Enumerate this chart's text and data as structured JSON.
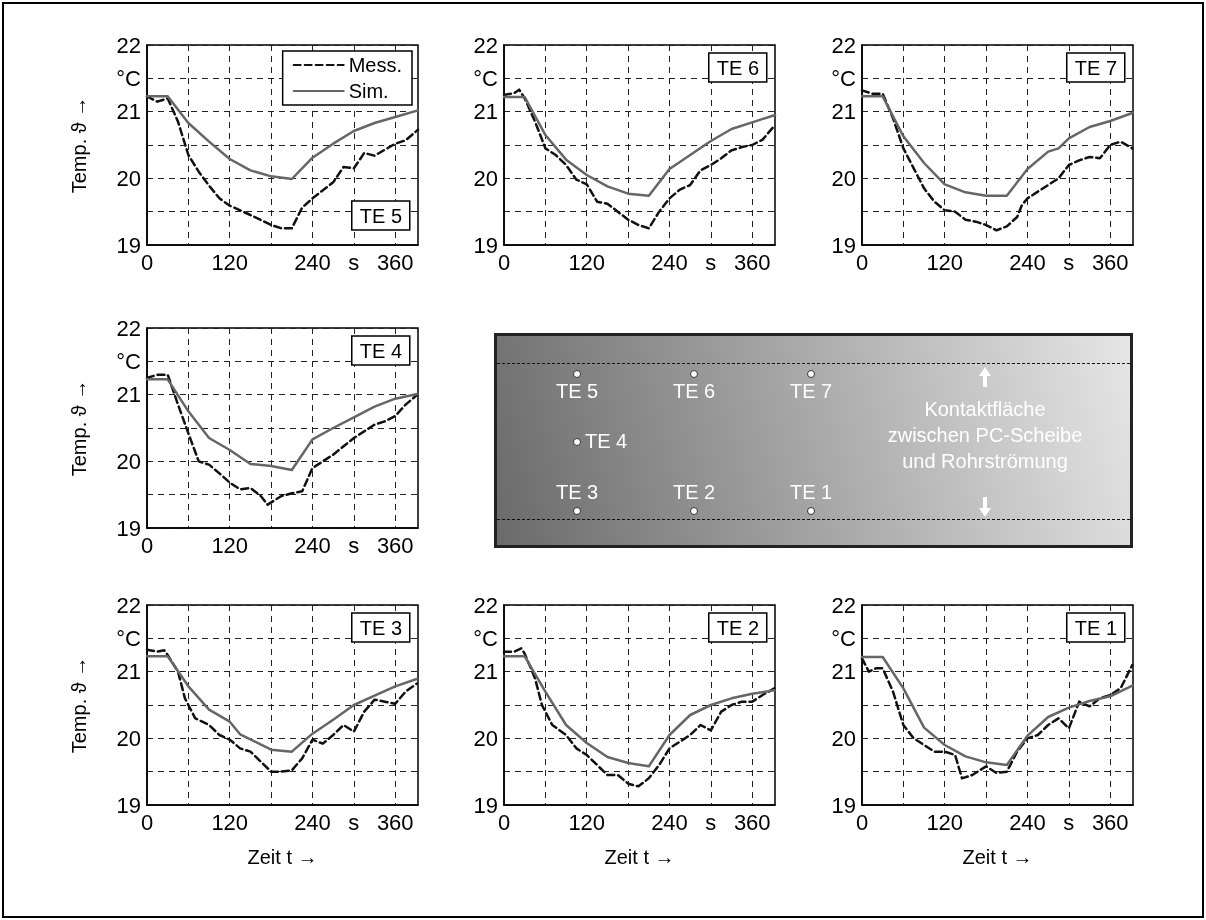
{
  "chart_data": [
    {
      "type": "line",
      "title": "TE 5",
      "ylabel": "Temp. ϑ →",
      "legend": "top right",
      "grid": true,
      "marker": "none",
      "xlim": [
        0,
        393
      ],
      "ylim": [
        19,
        22
      ],
      "xticks": [
        0,
        {
          "value": 60,
          "label": null
        },
        120,
        {
          "value": 180,
          "label": null
        },
        240,
        {
          "value": 300,
          "label": "s"
        },
        360
      ],
      "yticks": [
        19,
        {
          "value": 19.5,
          "label": null
        },
        20,
        {
          "value": 20.5,
          "label": null
        },
        21,
        {
          "value": 21.5,
          "label": "°C"
        },
        22
      ],
      "series": [
        {
          "name": "Mess.",
          "color": "#111111",
          "line_style": "dashed",
          "x": [
            0,
            15,
            30,
            45,
            60,
            75,
            90,
            105,
            120,
            150,
            180,
            195,
            210,
            225,
            240,
            270,
            285,
            300,
            315,
            330,
            360,
            375,
            393
          ],
          "values": [
            21.23,
            21.15,
            21.2,
            20.85,
            20.35,
            20.1,
            19.89,
            19.7,
            19.59,
            19.45,
            19.3,
            19.25,
            19.25,
            19.56,
            19.7,
            19.94,
            20.17,
            20.15,
            20.38,
            20.34,
            20.52,
            20.57,
            20.73
          ]
        },
        {
          "name": "Sim.",
          "color": "#666666",
          "line_style": "solid",
          "x": [
            0,
            30,
            60,
            90,
            120,
            150,
            180,
            210,
            240,
            270,
            300,
            330,
            360,
            393
          ],
          "values": [
            21.23,
            21.23,
            20.83,
            20.55,
            20.29,
            20.12,
            20.03,
            19.99,
            20.31,
            20.52,
            20.71,
            20.83,
            20.92,
            21.02
          ]
        }
      ]
    },
    {
      "type": "line",
      "title": "TE 6",
      "grid": true,
      "marker": "none",
      "xlim": [
        0,
        393
      ],
      "ylim": [
        19,
        22
      ],
      "xticks": [
        0,
        {
          "value": 60,
          "label": null
        },
        120,
        {
          "value": 180,
          "label": null
        },
        240,
        {
          "value": 300,
          "label": "s"
        },
        360
      ],
      "yticks": [
        19,
        {
          "value": 19.5,
          "label": null
        },
        20,
        {
          "value": 20.5,
          "label": null
        },
        21,
        {
          "value": 21.5,
          "label": "°C"
        },
        22
      ],
      "series": [
        {
          "color": "#111111",
          "line_style": "dashed",
          "x": [
            0,
            15,
            22,
            30,
            45,
            60,
            75,
            90,
            105,
            120,
            135,
            150,
            165,
            180,
            195,
            210,
            225,
            240,
            255,
            270,
            285,
            300,
            315,
            330,
            345,
            360,
            375,
            393
          ],
          "values": [
            21.25,
            21.28,
            21.33,
            21.2,
            20.85,
            20.45,
            20.35,
            20.2,
            19.98,
            19.91,
            19.65,
            19.62,
            19.5,
            19.38,
            19.3,
            19.25,
            19.5,
            19.7,
            19.83,
            19.9,
            20.12,
            20.2,
            20.3,
            20.42,
            20.47,
            20.5,
            20.58,
            20.8
          ]
        },
        {
          "color": "#666666",
          "line_style": "solid",
          "x": [
            0,
            30,
            60,
            90,
            120,
            150,
            180,
            210,
            240,
            270,
            300,
            330,
            360,
            393
          ],
          "values": [
            21.22,
            21.22,
            20.65,
            20.28,
            20.05,
            19.88,
            19.77,
            19.74,
            20.14,
            20.35,
            20.56,
            20.74,
            20.84,
            20.95
          ]
        }
      ]
    },
    {
      "type": "line",
      "title": "TE 7",
      "grid": true,
      "marker": "none",
      "xlim": [
        0,
        393
      ],
      "ylim": [
        19,
        22
      ],
      "xticks": [
        0,
        {
          "value": 60,
          "label": null
        },
        120,
        {
          "value": 180,
          "label": null
        },
        240,
        {
          "value": 300,
          "label": "s"
        },
        360
      ],
      "yticks": [
        19,
        {
          "value": 19.5,
          "label": null
        },
        20,
        {
          "value": 20.5,
          "label": null
        },
        21,
        {
          "value": 21.5,
          "label": "°C"
        },
        22
      ],
      "series": [
        {
          "color": "#111111",
          "line_style": "dashed",
          "x": [
            0,
            15,
            30,
            45,
            60,
            75,
            90,
            105,
            120,
            135,
            150,
            165,
            180,
            195,
            210,
            225,
            232,
            240,
            270,
            285,
            300,
            315,
            330,
            345,
            360,
            375,
            392
          ],
          "values": [
            21.32,
            21.27,
            21.27,
            20.9,
            20.45,
            20.15,
            19.85,
            19.65,
            19.52,
            19.5,
            19.38,
            19.35,
            19.3,
            19.22,
            19.28,
            19.42,
            19.6,
            19.7,
            19.9,
            20.0,
            20.2,
            20.27,
            20.32,
            20.3,
            20.5,
            20.55,
            20.45
          ]
        },
        {
          "color": "#666666",
          "line_style": "solid",
          "x": [
            0,
            30,
            60,
            90,
            120,
            150,
            180,
            210,
            240,
            270,
            285,
            300,
            330,
            360,
            392
          ],
          "values": [
            21.23,
            21.23,
            20.63,
            20.23,
            19.91,
            19.79,
            19.74,
            19.74,
            20.14,
            20.4,
            20.45,
            20.6,
            20.77,
            20.86,
            20.98
          ]
        }
      ]
    },
    {
      "type": "line",
      "title": "TE 4",
      "ylabel": "Temp. ϑ →",
      "grid": true,
      "marker": "none",
      "xlim": [
        0,
        393
      ],
      "ylim": [
        19,
        22
      ],
      "xticks": [
        0,
        {
          "value": 60,
          "label": null
        },
        120,
        {
          "value": 180,
          "label": null
        },
        240,
        {
          "value": 300,
          "label": "s"
        },
        360
      ],
      "yticks": [
        19,
        {
          "value": 19.5,
          "label": null
        },
        20,
        {
          "value": 20.5,
          "label": null
        },
        21,
        {
          "value": 21.5,
          "label": "°C"
        },
        22
      ],
      "series": [
        {
          "color": "#111111",
          "line_style": "dashed",
          "x": [
            0,
            15,
            30,
            45,
            60,
            75,
            90,
            105,
            120,
            135,
            150,
            165,
            175,
            195,
            210,
            225,
            240,
            255,
            270,
            300,
            315,
            330,
            345,
            360,
            375,
            392
          ],
          "values": [
            21.25,
            21.3,
            21.3,
            20.85,
            20.42,
            20.0,
            19.95,
            19.82,
            19.68,
            19.58,
            19.6,
            19.48,
            19.35,
            19.48,
            19.52,
            19.55,
            19.9,
            20.0,
            20.1,
            20.35,
            20.45,
            20.55,
            20.6,
            20.68,
            20.85,
            21.0
          ]
        },
        {
          "color": "#666666",
          "line_style": "solid",
          "x": [
            0,
            30,
            60,
            90,
            120,
            150,
            180,
            210,
            240,
            270,
            300,
            330,
            360,
            392
          ],
          "values": [
            21.23,
            21.23,
            20.75,
            20.35,
            20.17,
            19.96,
            19.93,
            19.87,
            20.33,
            20.5,
            20.66,
            20.82,
            20.94,
            21.01
          ]
        }
      ]
    },
    {
      "type": "other",
      "annotations": [
        "TE 5",
        "TE 6",
        "TE 7",
        "TE 4",
        "TE 3",
        "TE 2",
        "TE 1",
        "Kontaktfläche zwischen PC-Scheibe und Rohrströmung"
      ]
    },
    {
      "type": "line",
      "title": "TE 3",
      "xlabel": "Zeit t →",
      "ylabel": "Temp. ϑ →",
      "grid": true,
      "marker": "none",
      "xlim": [
        0,
        393
      ],
      "ylim": [
        19,
        22
      ],
      "xticks": [
        0,
        {
          "value": 60,
          "label": null
        },
        120,
        {
          "value": 180,
          "label": null
        },
        240,
        {
          "value": 300,
          "label": "s"
        },
        360
      ],
      "yticks": [
        19,
        {
          "value": 19.5,
          "label": null
        },
        20,
        {
          "value": 20.5,
          "label": null
        },
        21,
        {
          "value": 21.5,
          "label": "°C"
        },
        22
      ],
      "series": [
        {
          "color": "#111111",
          "line_style": "dashed",
          "x": [
            0,
            15,
            25,
            30,
            45,
            55,
            70,
            90,
            105,
            120,
            135,
            150,
            165,
            180,
            195,
            210,
            225,
            240,
            255,
            270,
            285,
            300,
            315,
            330,
            345,
            360,
            375,
            391
          ],
          "values": [
            21.33,
            21.3,
            21.32,
            21.25,
            21.0,
            20.6,
            20.3,
            20.2,
            20.05,
            19.98,
            19.85,
            19.8,
            19.65,
            19.5,
            19.5,
            19.52,
            19.7,
            19.98,
            19.92,
            20.05,
            20.2,
            20.1,
            20.4,
            20.58,
            20.55,
            20.52,
            20.7,
            20.82
          ]
        },
        {
          "color": "#666666",
          "line_style": "solid",
          "x": [
            0,
            30,
            60,
            90,
            120,
            135,
            180,
            210,
            240,
            270,
            300,
            330,
            360,
            391
          ],
          "values": [
            21.23,
            21.23,
            20.78,
            20.43,
            20.25,
            20.06,
            19.83,
            19.8,
            20.07,
            20.28,
            20.5,
            20.64,
            20.78,
            20.89
          ]
        }
      ]
    },
    {
      "type": "line",
      "title": "TE 2",
      "xlabel": "Zeit t →",
      "grid": true,
      "marker": "none",
      "xlim": [
        0,
        393
      ],
      "ylim": [
        19,
        22
      ],
      "xticks": [
        0,
        {
          "value": 60,
          "label": null
        },
        120,
        {
          "value": 180,
          "label": null
        },
        240,
        {
          "value": 300,
          "label": "s"
        },
        360
      ],
      "yticks": [
        19,
        {
          "value": 19.5,
          "label": null
        },
        20,
        {
          "value": 20.5,
          "label": null
        },
        21,
        {
          "value": 21.5,
          "label": "°C"
        },
        22
      ],
      "series": [
        {
          "color": "#111111",
          "line_style": "dashed",
          "x": [
            0,
            15,
            25,
            30,
            45,
            55,
            70,
            90,
            105,
            120,
            135,
            150,
            165,
            180,
            195,
            210,
            225,
            240,
            255,
            270,
            285,
            300,
            315,
            330,
            345,
            360,
            375,
            392
          ],
          "values": [
            21.3,
            21.3,
            21.35,
            21.27,
            20.9,
            20.5,
            20.2,
            20.05,
            19.85,
            19.75,
            19.6,
            19.45,
            19.45,
            19.32,
            19.28,
            19.4,
            19.6,
            19.85,
            19.95,
            20.05,
            20.2,
            20.12,
            20.4,
            20.5,
            20.55,
            20.55,
            20.65,
            20.75
          ]
        },
        {
          "color": "#666666",
          "line_style": "solid",
          "x": [
            0,
            30,
            60,
            90,
            120,
            150,
            180,
            210,
            240,
            270,
            300,
            330,
            360,
            392
          ],
          "values": [
            21.23,
            21.23,
            20.7,
            20.2,
            19.93,
            19.72,
            19.63,
            19.58,
            20.05,
            20.35,
            20.5,
            20.6,
            20.67,
            20.72
          ]
        }
      ]
    },
    {
      "type": "line",
      "title": "TE 1",
      "xlabel": "Zeit t →",
      "grid": true,
      "marker": "none",
      "xlim": [
        0,
        393
      ],
      "ylim": [
        19,
        22
      ],
      "xticks": [
        0,
        {
          "value": 60,
          "label": null
        },
        120,
        {
          "value": 180,
          "label": null
        },
        240,
        {
          "value": 300,
          "label": "s"
        },
        360
      ],
      "yticks": [
        19,
        {
          "value": 19.5,
          "label": null
        },
        20,
        {
          "value": 20.5,
          "label": null
        },
        21,
        {
          "value": 21.5,
          "label": "°C"
        },
        22
      ],
      "series": [
        {
          "color": "#111111",
          "line_style": "dashed",
          "x": [
            0,
            10,
            20,
            30,
            45,
            60,
            75,
            90,
            105,
            120,
            135,
            145,
            160,
            180,
            195,
            210,
            225,
            240,
            255,
            270,
            285,
            300,
            315,
            330,
            345,
            360,
            375,
            392
          ],
          "values": [
            21.2,
            21.0,
            21.05,
            21.05,
            20.7,
            20.2,
            20.0,
            19.9,
            19.8,
            19.8,
            19.75,
            19.4,
            19.45,
            19.58,
            19.48,
            19.5,
            19.8,
            20.0,
            20.05,
            20.2,
            20.3,
            20.15,
            20.55,
            20.48,
            20.6,
            20.65,
            20.75,
            21.1
          ]
        },
        {
          "color": "#666666",
          "line_style": "solid",
          "x": [
            0,
            30,
            60,
            90,
            120,
            150,
            180,
            210,
            240,
            270,
            300,
            330,
            360,
            392
          ],
          "values": [
            21.22,
            21.22,
            20.75,
            20.16,
            19.9,
            19.73,
            19.64,
            19.6,
            20.04,
            20.32,
            20.46,
            20.56,
            20.63,
            20.79
          ]
        }
      ]
    }
  ]
}
